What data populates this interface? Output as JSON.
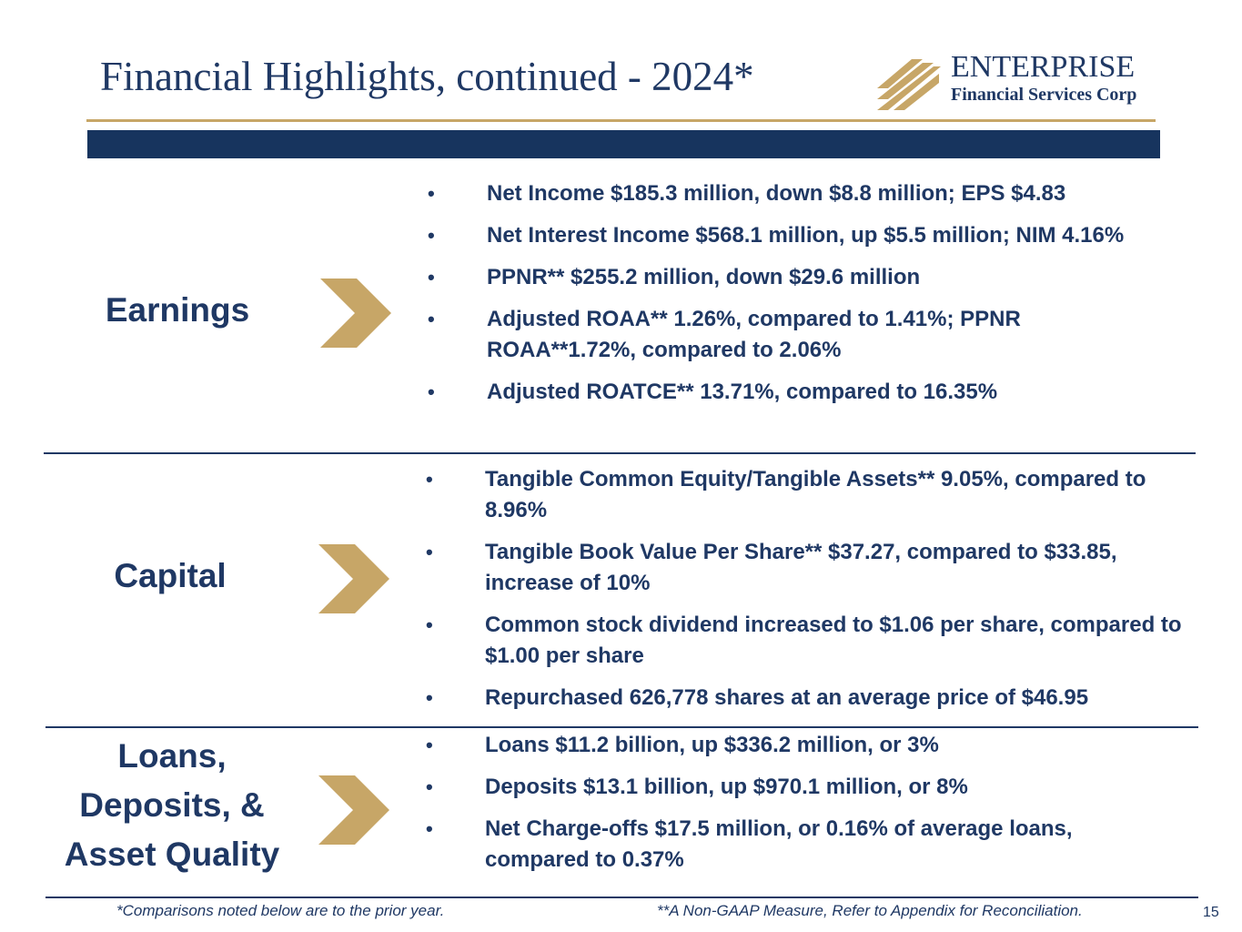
{
  "header": {
    "title": "Financial Highlights, continued - 2024*",
    "logo_name": "ENTERPRISE",
    "logo_sub": "Financial Services Corp"
  },
  "sections": [
    {
      "label": "Earnings",
      "bullets": [
        "Net Income $185.3 million, down $8.8 million; EPS $4.83",
        "Net Interest Income $568.1 million, up $5.5 million; NIM 4.16%",
        "PPNR** $255.2 million, down $29.6 million",
        "Adjusted ROAA** 1.26%, compared to 1.41%; PPNR ROAA**1.72%, compared to 2.06%",
        "Adjusted ROATCE** 13.71%, compared to 16.35%"
      ]
    },
    {
      "label": "Capital",
      "bullets": [
        "Tangible Common Equity/Tangible Assets** 9.05%, compared to 8.96%",
        "Tangible Book Value Per Share** $37.27, compared to $33.85, increase of 10%",
        "Common stock dividend increased to $1.06 per share, compared to $1.00 per share",
        "Repurchased 626,778 shares at an average price of $46.95"
      ]
    },
    {
      "label": "Loans, Deposits, & Asset Quality",
      "bullets": [
        "Loans $11.2 billion, up $336.2 million, or 3%",
        "Deposits $13.1 billion, up $970.1 million, or 8%",
        "Net Charge-offs $17.5 million, or 0.16% of average loans, compared to 0.37%"
      ]
    }
  ],
  "footer": {
    "note_left": "*Comparisons noted below are to the prior year.",
    "note_right": "**A Non-GAAP Measure, Refer to Appendix for Reconciliation.",
    "page_number": "15"
  },
  "colors": {
    "navy": "#1f3864",
    "band": "#17345e",
    "gold": "#c7a667"
  }
}
